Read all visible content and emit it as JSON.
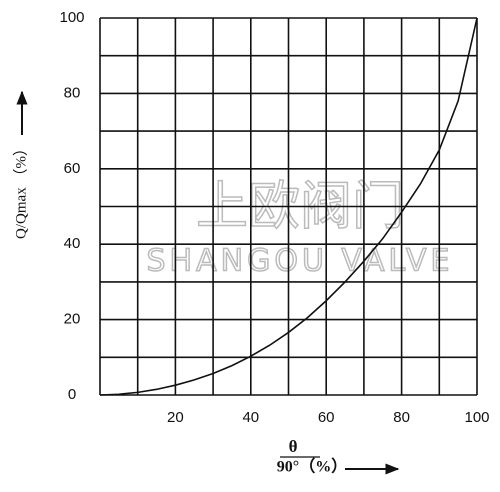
{
  "chart_data": {
    "type": "line",
    "y_label": "Q/Qmax （%）",
    "x_label_numerator": "θ",
    "x_label_denominator": "90°（%）",
    "watermark": [
      "上欧阀门",
      "SHANGOU VALVE"
    ],
    "x": [
      0,
      5,
      10,
      15,
      20,
      25,
      30,
      35,
      40,
      45,
      50,
      55,
      60,
      65,
      70,
      75,
      80,
      85,
      90,
      95,
      100
    ],
    "series": [
      {
        "color": "#111111",
        "values": [
          0,
          0.2,
          0.7,
          1.5,
          2.6,
          4,
          5.7,
          7.8,
          10.3,
          13.2,
          16.6,
          20.5,
          25,
          30,
          35.5,
          41.5,
          48.5,
          56,
          65,
          78,
          100
        ]
      }
    ],
    "xlim": [
      0,
      100
    ],
    "ylim": [
      0,
      100
    ],
    "xticks": [
      20,
      40,
      60,
      80,
      100
    ],
    "yticks": [
      0,
      20,
      40,
      60,
      80,
      100
    ],
    "xgrid": [
      0,
      10,
      20,
      30,
      40,
      50,
      60,
      70,
      80,
      90,
      100
    ],
    "ygrid": [
      0,
      10,
      20,
      30,
      40,
      50,
      60,
      70,
      80,
      90,
      100
    ]
  }
}
